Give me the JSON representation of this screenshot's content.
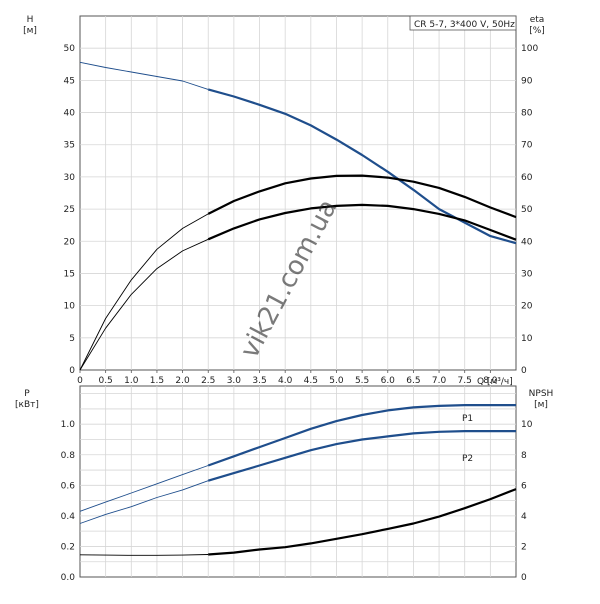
{
  "watermark": "vik21.com.ua",
  "chart_data": [
    {
      "type": "line",
      "panel": "upper",
      "title": "CR 5-7, 3*400 V, 50Hz",
      "xlabel": "Q [м³/ч]",
      "ylabel_left": "H\n[м]",
      "ylabel_right": "eta\n[%]",
      "xlim": [
        0,
        8.5
      ],
      "ylim_left": [
        0,
        55
      ],
      "ylim_right": [
        0,
        110
      ],
      "x_ticks": [
        "0",
        "0.5",
        "1.0",
        "1.5",
        "2.0",
        "2.5",
        "3.0",
        "3.5",
        "4.0",
        "4.5",
        "5.0",
        "5.5",
        "6.0",
        "6.5",
        "7.0",
        "7.5",
        "8.0"
      ],
      "y_ticks_left": [
        "0",
        "5",
        "10",
        "15",
        "20",
        "25",
        "30",
        "35",
        "40",
        "45",
        "50"
      ],
      "y_ticks_right": [
        "0",
        "10",
        "20",
        "30",
        "40",
        "50",
        "60",
        "70",
        "80",
        "90",
        "100"
      ],
      "grid": true,
      "series": [
        {
          "axis": "left",
          "color": "#1f4e8c",
          "x": [
            0,
            0.5,
            1.0,
            1.5,
            2.0,
            2.5,
            3.0,
            3.5,
            4.0,
            4.5,
            5.0,
            5.5,
            6.0,
            6.5,
            7.0,
            7.5,
            8.0,
            8.5
          ],
          "y": [
            47.8,
            47.0,
            46.3,
            45.6,
            44.9,
            43.6,
            42.5,
            41.2,
            39.8,
            38.0,
            35.8,
            33.4,
            30.8,
            28.0,
            25.0,
            22.9,
            20.8,
            19.7
          ]
        },
        {
          "axis": "right",
          "color": "#000000",
          "x": [
            0,
            0.5,
            1.0,
            1.5,
            2.0,
            2.5,
            3.0,
            3.5,
            4.0,
            4.5,
            5.0,
            5.5,
            6.0,
            6.5,
            7.0,
            7.5,
            8.0,
            8.5
          ],
          "y": [
            0,
            16,
            28,
            37.5,
            44,
            48.5,
            52.5,
            55.5,
            58,
            59.5,
            60.3,
            60.4,
            59.8,
            58.5,
            56.6,
            53.8,
            50.5,
            47.5
          ]
        },
        {
          "axis": "right",
          "color": "#000000",
          "x": [
            0,
            0.5,
            1.0,
            1.5,
            2.0,
            2.5,
            3.0,
            3.5,
            4.0,
            4.5,
            5.0,
            5.5,
            6.0,
            6.5,
            7.0,
            7.5,
            8.0,
            8.5
          ],
          "y": [
            0,
            13,
            23.5,
            31.5,
            37,
            40.6,
            44,
            46.8,
            48.8,
            50.2,
            51.0,
            51.3,
            51.0,
            50.0,
            48.5,
            46.5,
            43.5,
            40.5
          ]
        }
      ]
    },
    {
      "type": "line",
      "panel": "lower",
      "xlabel": "",
      "ylabel_left": "P\n[кВт]",
      "ylabel_right": "NPSH\n[м]",
      "xlim": [
        0,
        8.5
      ],
      "ylim_left": [
        0,
        1.25
      ],
      "ylim_right": [
        0,
        12.5
      ],
      "y_ticks_left": [
        "0.0",
        "0.2",
        "0.4",
        "0.6",
        "0.8",
        "1.0"
      ],
      "y_ticks_right": [
        "0",
        "2",
        "4",
        "6",
        "8",
        "10"
      ],
      "grid": true,
      "series": [
        {
          "name": "P1",
          "axis": "left",
          "color": "#1f4e8c",
          "x": [
            0,
            0.5,
            1.0,
            1.5,
            2.0,
            2.5,
            3.0,
            3.5,
            4.0,
            4.5,
            5.0,
            5.5,
            6.0,
            6.5,
            7.0,
            7.5,
            8.0,
            8.5
          ],
          "y": [
            0.43,
            0.49,
            0.55,
            0.61,
            0.67,
            0.73,
            0.79,
            0.85,
            0.91,
            0.97,
            1.02,
            1.06,
            1.09,
            1.11,
            1.12,
            1.125,
            1.125,
            1.125
          ]
        },
        {
          "name": "P2",
          "axis": "left",
          "color": "#1f4e8c",
          "x": [
            0,
            0.5,
            1.0,
            1.5,
            2.0,
            2.5,
            3.0,
            3.5,
            4.0,
            4.5,
            5.0,
            5.5,
            6.0,
            6.5,
            7.0,
            7.5,
            8.0,
            8.5
          ],
          "y": [
            0.35,
            0.41,
            0.46,
            0.52,
            0.57,
            0.63,
            0.68,
            0.73,
            0.78,
            0.83,
            0.87,
            0.9,
            0.92,
            0.94,
            0.95,
            0.955,
            0.955,
            0.955
          ]
        },
        {
          "axis": "right",
          "color": "#000000",
          "x": [
            0,
            0.5,
            1.0,
            1.5,
            2.0,
            2.5,
            3.0,
            3.5,
            4.0,
            4.5,
            5.0,
            5.5,
            6.0,
            6.5,
            7.0,
            7.5,
            8.0,
            8.5
          ],
          "y": [
            1.45,
            1.43,
            1.42,
            1.42,
            1.43,
            1.47,
            1.6,
            1.8,
            1.95,
            2.2,
            2.5,
            2.8,
            3.15,
            3.5,
            3.95,
            4.5,
            5.1,
            5.75
          ]
        }
      ]
    }
  ]
}
